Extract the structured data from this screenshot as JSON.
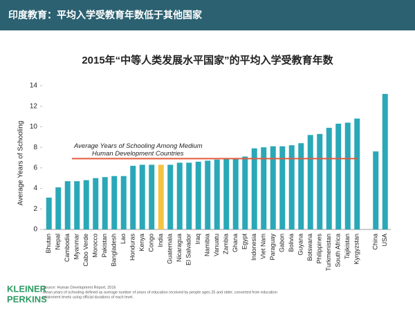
{
  "header": {
    "title": "印度教育：平均入学受教育年数低于其他国家"
  },
  "chart_data": {
    "type": "bar",
    "title": "2015年“中等人类发展水平国家”的平均入学受教育年数",
    "y_label": "Average Years of Schooling",
    "categories": [
      "Bhutan",
      "Nepal",
      "Cambodia",
      "Myanmar",
      "Cabo Verde",
      "Morocco",
      "Pakistan",
      "Bangladesh",
      "Lao",
      "Honduras",
      "Kenya",
      "Congo",
      "India",
      "Guatemala",
      "Nicaragua",
      "El Salvador",
      "Iraq",
      "Namibia",
      "Vanuatu",
      "Zambia",
      "Ghana",
      "Egypt",
      "Indonesia",
      "Viet Nam",
      "Paraguay",
      "Gabon",
      "Bolivia",
      "Guyana",
      "Botswana",
      "Philippines",
      "Turkmenistan",
      "South Africa",
      "Tajikistan",
      "Kyrgyzstan",
      null,
      "China",
      "USA"
    ],
    "values": [
      3.1,
      4.1,
      4.7,
      4.7,
      4.8,
      5.0,
      5.1,
      5.2,
      5.2,
      6.2,
      6.3,
      6.3,
      6.3,
      6.3,
      6.5,
      6.5,
      6.6,
      6.7,
      6.8,
      6.9,
      6.9,
      7.1,
      7.9,
      8.0,
      8.1,
      8.1,
      8.2,
      8.4,
      9.2,
      9.3,
      9.9,
      10.3,
      10.4,
      10.8,
      null,
      7.6,
      13.2
    ],
    "color": "#2aa8b8",
    "highlight_index": 12,
    "highlight_color": "#f4c542",
    "ylim": [
      0,
      14
    ],
    "yticks": [
      0,
      2,
      4,
      6,
      8,
      10,
      12,
      14
    ],
    "reference_line": {
      "value": 6.9,
      "color": "#e4583a",
      "label": [
        "Average Years of Schooling Among Medium",
        "Human Development Countries"
      ]
    }
  },
  "footer": {
    "logo": [
      "KLEINER",
      "PERKINS"
    ],
    "source": [
      "Source: Human Development Report, 2016",
      "Mean years of schooling defined as average number of years of education received by people ages 25 and older, converted from education",
      "attainment levels using official durations of each level."
    ]
  }
}
